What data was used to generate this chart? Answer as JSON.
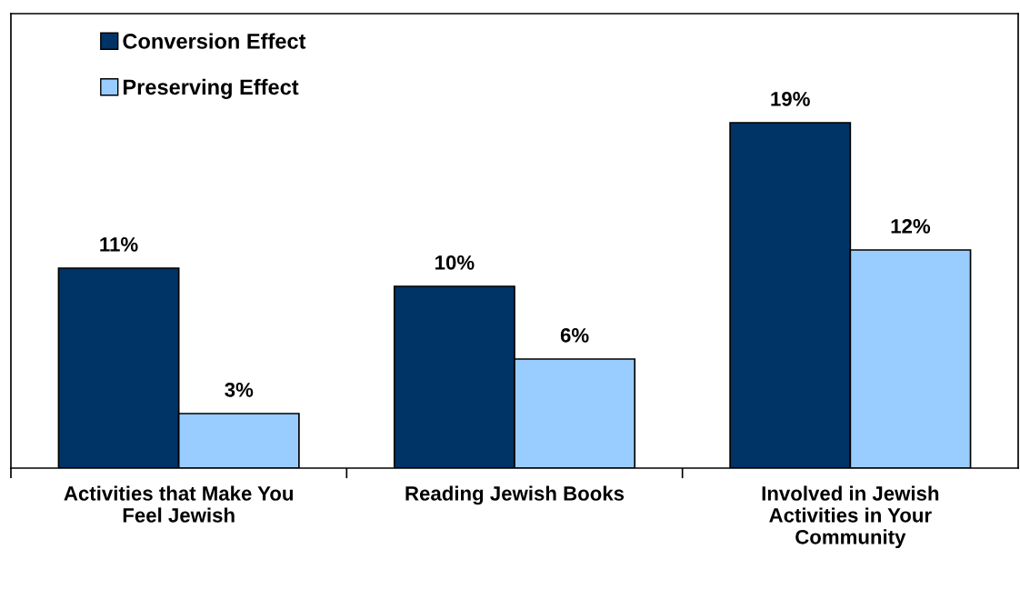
{
  "chart_data": {
    "type": "bar",
    "categories": [
      "Activities that Make You\nFeel Jewish",
      "Reading Jewish Books",
      "Involved in Jewish\nActivities in Your\nCommunity"
    ],
    "series": [
      {
        "name": "Conversion Effect",
        "color": "#003366",
        "values": [
          11,
          10,
          19
        ],
        "value_labels": [
          "11%",
          "10%",
          "19%"
        ]
      },
      {
        "name": "Preserving Effect",
        "color": "#99ccff",
        "values": [
          3,
          6,
          12
        ],
        "value_labels": [
          "3%",
          "6%",
          "12%"
        ]
      }
    ],
    "ylim": [
      0,
      25
    ],
    "tick_labels": "x",
    "grid": false,
    "legend": "top left"
  }
}
